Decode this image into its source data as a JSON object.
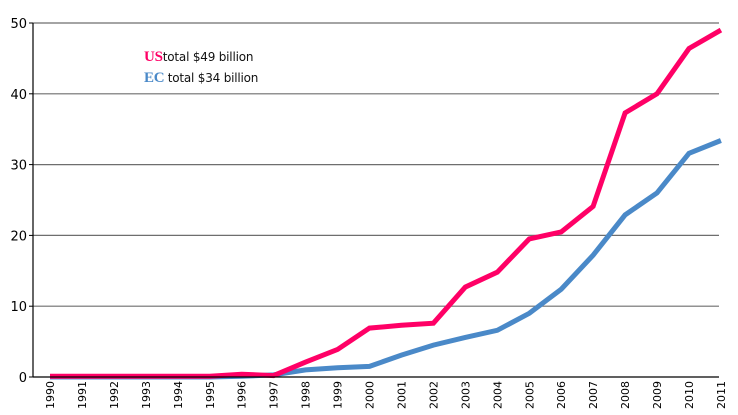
{
  "chart_data": {
    "type": "line",
    "title": "",
    "xlabel": "",
    "ylabel": "",
    "ylim": [
      0,
      50
    ],
    "yticks": [
      0,
      10,
      20,
      30,
      40,
      50
    ],
    "grid": true,
    "legend_placement": "top-left",
    "x": [
      "1990",
      "1991",
      "1992",
      "1993",
      "1994",
      "1995",
      "1996",
      "1997",
      "1998",
      "1999",
      "2000",
      "2001",
      "2002",
      "2003",
      "2004",
      "2005",
      "2006",
      "2007",
      "2008",
      "2009",
      "2010",
      "2011"
    ],
    "series": [
      {
        "name": "US",
        "color": "#FF0066",
        "values": [
          0.1,
          0.1,
          0.1,
          0.1,
          0.1,
          0.1,
          0.4,
          0.2,
          2.1,
          3.9,
          6.9,
          7.3,
          7.6,
          12.7,
          14.8,
          19.5,
          20.5,
          24.1,
          37.3,
          40.0,
          46.4,
          49.0
        ]
      },
      {
        "name": "EC",
        "color": "#4A89C8",
        "values": [
          0.0,
          0.0,
          0.0,
          0.0,
          0.0,
          0.0,
          0.1,
          0.3,
          1.0,
          1.3,
          1.5,
          3.1,
          4.5,
          5.6,
          6.6,
          9.0,
          12.4,
          17.2,
          22.9,
          26.0,
          31.6,
          33.4
        ]
      }
    ],
    "annotations": [
      {
        "code": "US",
        "text": "total  $49  billion",
        "color": "#FF0066"
      },
      {
        "code": "EC",
        "text": "total  $34  billion",
        "color": "#4A89C8"
      }
    ]
  }
}
